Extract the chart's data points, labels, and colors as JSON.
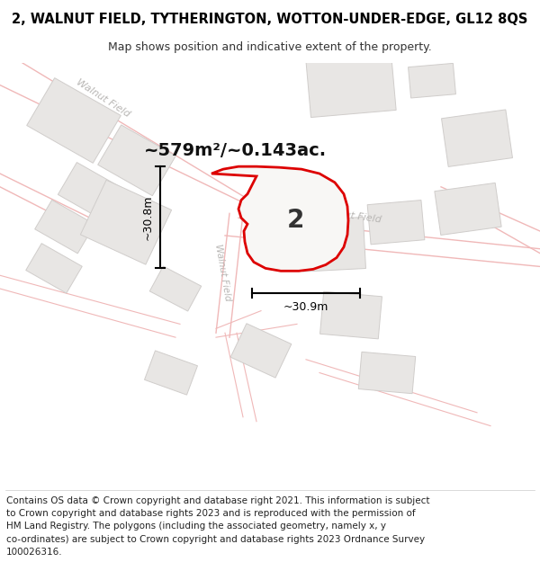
{
  "title": "2, WALNUT FIELD, TYTHERINGTON, WOTTON-UNDER-EDGE, GL12 8QS",
  "subtitle": "Map shows position and indicative extent of the property.",
  "area_text": "~579m²/~0.143ac.",
  "width_label": "~30.9m",
  "height_label": "~30.8m",
  "plot_number": "2",
  "footer_lines": [
    "Contains OS data © Crown copyright and database right 2021. This information is subject",
    "to Crown copyright and database rights 2023 and is reproduced with the permission of",
    "HM Land Registry. The polygons (including the associated geometry, namely x, y",
    "co-ordinates) are subject to Crown copyright and database rights 2023 Ordnance Survey",
    "100026316."
  ],
  "map_bg": "#f5f4f2",
  "road_line_color": "#f0b8b8",
  "building_color": "#e8e6e4",
  "building_edge": "#d0cdcb",
  "plot_border_color": "#dd0000",
  "road_label_color": "#b8b6b4",
  "title_fontsize": 10.5,
  "subtitle_fontsize": 9,
  "footer_fontsize": 7.5,
  "area_fontsize": 14,
  "plot_label_fontsize": 20
}
